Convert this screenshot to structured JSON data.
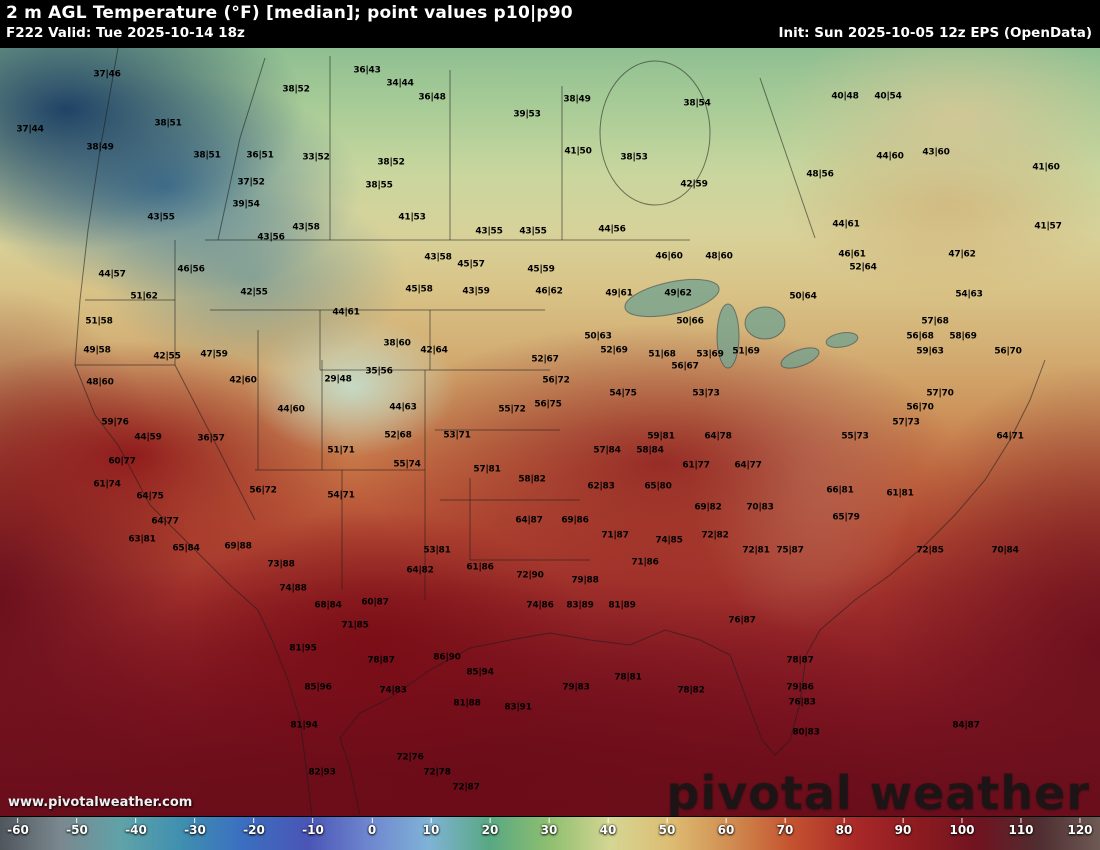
{
  "header": {
    "title": "2 m AGL Temperature (°F) [median]; point values p10|p90",
    "left": "F222 Valid: Tue 2025-10-14 18z",
    "right": "Init: Sun 2025-10-05 12z EPS (OpenData)"
  },
  "watermarks": {
    "url": "www.pivotalweather.com",
    "brand": "pivotal weather"
  },
  "colorbar": {
    "ticks": [
      "-60",
      "-50",
      "-40",
      "-30",
      "-20",
      "-10",
      "0",
      "10",
      "20",
      "30",
      "40",
      "50",
      "60",
      "70",
      "80",
      "90",
      "100",
      "110",
      "120"
    ],
    "gradient": [
      "#4f565c 0%",
      "#7b8890 5.5%",
      "#5fa3a8 11%",
      "#3f8fb0 16.5%",
      "#3b6fc0 22%",
      "#4a55b5 28%",
      "#6f86cf 33.5%",
      "#7fb3d6 39%",
      "#58a882 44.5%",
      "#8fbf6f 50%",
      "#d5d693 55.5%",
      "#ddbc72 61%",
      "#d08c50 66.5%",
      "#c4522f 72%",
      "#a82828 78%",
      "#8c1b20 83.5%",
      "#701320 89%",
      "#4f2e31 94.5%",
      "#6e5a55 100%"
    ]
  },
  "map": {
    "stations": [
      [
        107,
        75,
        "37|46"
      ],
      [
        296,
        90,
        "38|52"
      ],
      [
        367,
        71,
        "36|43"
      ],
      [
        400,
        84,
        "34|44"
      ],
      [
        432,
        98,
        "36|48"
      ],
      [
        577,
        100,
        "38|49"
      ],
      [
        697,
        104,
        "38|54"
      ],
      [
        845,
        97,
        "40|48"
      ],
      [
        888,
        97,
        "40|54"
      ],
      [
        30,
        130,
        "37|44"
      ],
      [
        168,
        124,
        "38|51"
      ],
      [
        527,
        115,
        "39|53"
      ],
      [
        100,
        148,
        "38|49"
      ],
      [
        207,
        156,
        "38|51"
      ],
      [
        260,
        156,
        "36|51"
      ],
      [
        316,
        158,
        "33|52"
      ],
      [
        391,
        163,
        "38|52"
      ],
      [
        578,
        152,
        "41|50"
      ],
      [
        634,
        158,
        "38|53"
      ],
      [
        890,
        157,
        "44|60"
      ],
      [
        936,
        153,
        "43|60"
      ],
      [
        1046,
        168,
        "41|60"
      ],
      [
        820,
        175,
        "48|56"
      ],
      [
        251,
        183,
        "37|52"
      ],
      [
        379,
        186,
        "38|55"
      ],
      [
        694,
        185,
        "42|59"
      ],
      [
        246,
        205,
        "39|54"
      ],
      [
        161,
        218,
        "43|55"
      ],
      [
        412,
        218,
        "41|53"
      ],
      [
        271,
        238,
        "43|56"
      ],
      [
        306,
        228,
        "43|58"
      ],
      [
        489,
        232,
        "43|55"
      ],
      [
        533,
        232,
        "43|55"
      ],
      [
        612,
        230,
        "44|56"
      ],
      [
        846,
        225,
        "44|61"
      ],
      [
        1048,
        227,
        "41|57"
      ],
      [
        112,
        275,
        "44|57"
      ],
      [
        191,
        270,
        "46|56"
      ],
      [
        438,
        258,
        "43|58"
      ],
      [
        471,
        265,
        "45|57"
      ],
      [
        541,
        270,
        "45|59"
      ],
      [
        669,
        257,
        "46|60"
      ],
      [
        719,
        257,
        "48|60"
      ],
      [
        852,
        255,
        "46|61"
      ],
      [
        863,
        268,
        "52|64"
      ],
      [
        962,
        255,
        "47|62"
      ],
      [
        144,
        297,
        "51|62"
      ],
      [
        254,
        293,
        "42|55"
      ],
      [
        419,
        290,
        "45|58"
      ],
      [
        476,
        292,
        "43|59"
      ],
      [
        549,
        292,
        "46|62"
      ],
      [
        619,
        294,
        "49|61"
      ],
      [
        678,
        294,
        "49|62"
      ],
      [
        803,
        297,
        "50|64"
      ],
      [
        969,
        295,
        "54|63"
      ],
      [
        99,
        322,
        "51|58"
      ],
      [
        346,
        313,
        "44|61"
      ],
      [
        935,
        322,
        "57|68"
      ],
      [
        690,
        322,
        "50|66"
      ],
      [
        598,
        337,
        "50|63"
      ],
      [
        614,
        351,
        "52|69"
      ],
      [
        662,
        355,
        "51|68"
      ],
      [
        710,
        355,
        "53|69"
      ],
      [
        920,
        337,
        "56|68"
      ],
      [
        963,
        337,
        "58|69"
      ],
      [
        930,
        352,
        "59|63"
      ],
      [
        1008,
        352,
        "56|70"
      ],
      [
        97,
        351,
        "49|58"
      ],
      [
        167,
        357,
        "42|55"
      ],
      [
        214,
        355,
        "47|59"
      ],
      [
        397,
        344,
        "38|60"
      ],
      [
        434,
        351,
        "42|64"
      ],
      [
        545,
        360,
        "52|67"
      ],
      [
        685,
        367,
        "56|67"
      ],
      [
        746,
        352,
        "51|69"
      ],
      [
        100,
        383,
        "48|60"
      ],
      [
        243,
        381,
        "42|60"
      ],
      [
        338,
        380,
        "29|48"
      ],
      [
        379,
        372,
        "35|56"
      ],
      [
        556,
        381,
        "56|72"
      ],
      [
        623,
        394,
        "54|75"
      ],
      [
        706,
        394,
        "53|73"
      ],
      [
        403,
        408,
        "44|63"
      ],
      [
        291,
        410,
        "44|60"
      ],
      [
        115,
        423,
        "59|76"
      ],
      [
        512,
        410,
        "55|72"
      ],
      [
        548,
        405,
        "56|75"
      ],
      [
        661,
        437,
        "59|81"
      ],
      [
        718,
        437,
        "64|78"
      ],
      [
        748,
        466,
        "64|77"
      ],
      [
        696,
        466,
        "61|77"
      ],
      [
        855,
        437,
        "55|73"
      ],
      [
        906,
        423,
        "57|73"
      ],
      [
        920,
        408,
        "56|70"
      ],
      [
        940,
        394,
        "57|70"
      ],
      [
        1010,
        437,
        "64|71"
      ],
      [
        457,
        436,
        "53|71"
      ],
      [
        398,
        436,
        "52|68"
      ],
      [
        341,
        451,
        "51|71"
      ],
      [
        211,
        439,
        "36|57"
      ],
      [
        148,
        438,
        "44|59"
      ],
      [
        122,
        462,
        "60|77"
      ],
      [
        263,
        491,
        "56|72"
      ],
      [
        341,
        496,
        "54|71"
      ],
      [
        407,
        465,
        "55|74"
      ],
      [
        487,
        470,
        "57|81"
      ],
      [
        532,
        480,
        "58|82"
      ],
      [
        607,
        451,
        "57|84"
      ],
      [
        650,
        451,
        "58|84"
      ],
      [
        601,
        487,
        "62|83"
      ],
      [
        658,
        487,
        "65|80"
      ],
      [
        708,
        508,
        "69|82"
      ],
      [
        760,
        508,
        "70|83"
      ],
      [
        529,
        521,
        "64|87"
      ],
      [
        575,
        521,
        "69|86"
      ],
      [
        615,
        536,
        "71|87"
      ],
      [
        669,
        541,
        "74|85"
      ],
      [
        715,
        536,
        "72|82"
      ],
      [
        756,
        551,
        "72|81"
      ],
      [
        840,
        491,
        "66|81"
      ],
      [
        900,
        494,
        "61|81"
      ],
      [
        846,
        518,
        "65|79"
      ],
      [
        790,
        551,
        "75|87"
      ],
      [
        1005,
        551,
        "70|84"
      ],
      [
        930,
        551,
        "72|85"
      ],
      [
        437,
        551,
        "53|81"
      ],
      [
        420,
        571,
        "64|82"
      ],
      [
        480,
        568,
        "61|86"
      ],
      [
        530,
        576,
        "72|90"
      ],
      [
        585,
        581,
        "79|88"
      ],
      [
        645,
        563,
        "71|86"
      ],
      [
        540,
        606,
        "74|86"
      ],
      [
        580,
        606,
        "83|89"
      ],
      [
        622,
        606,
        "81|89"
      ],
      [
        293,
        589,
        "74|88"
      ],
      [
        328,
        606,
        "68|84"
      ],
      [
        375,
        603,
        "60|87"
      ],
      [
        355,
        626,
        "71|85"
      ],
      [
        303,
        649,
        "81|95"
      ],
      [
        318,
        688,
        "85|96"
      ],
      [
        381,
        661,
        "78|87"
      ],
      [
        447,
        658,
        "86|90"
      ],
      [
        480,
        673,
        "85|94"
      ],
      [
        393,
        691,
        "74|83"
      ],
      [
        467,
        704,
        "81|88"
      ],
      [
        518,
        708,
        "83|91"
      ],
      [
        304,
        726,
        "81|94"
      ],
      [
        322,
        773,
        "82|93"
      ],
      [
        410,
        758,
        "72|76"
      ],
      [
        437,
        773,
        "72|78"
      ],
      [
        466,
        788,
        "72|87"
      ],
      [
        742,
        621,
        "76|87"
      ],
      [
        800,
        661,
        "78|87"
      ],
      [
        628,
        678,
        "78|81"
      ],
      [
        576,
        688,
        "79|83"
      ],
      [
        691,
        691,
        "78|82"
      ],
      [
        800,
        688,
        "79|86"
      ],
      [
        802,
        703,
        "76|83"
      ],
      [
        806,
        733,
        "80|83"
      ],
      [
        150,
        497,
        "64|75"
      ],
      [
        165,
        522,
        "64|77"
      ],
      [
        142,
        540,
        "63|81"
      ],
      [
        186,
        549,
        "65|84"
      ],
      [
        238,
        547,
        "69|88"
      ],
      [
        281,
        565,
        "73|88"
      ],
      [
        107,
        485,
        "61|74"
      ],
      [
        966,
        726,
        "84|87"
      ]
    ]
  }
}
